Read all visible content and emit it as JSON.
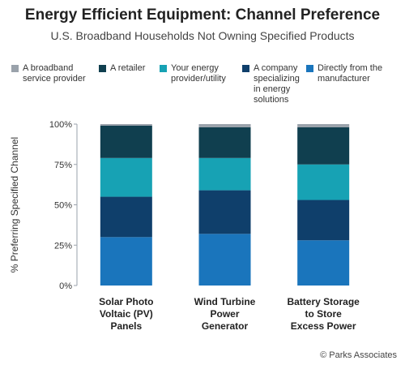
{
  "chart_data": {
    "type": "bar",
    "stacked": true,
    "title": "Energy Efficient Equipment: Channel Preference",
    "subtitle": "U.S. Broadband Households Not Owning Specified Products",
    "ylabel": "% Preferring Specified Channel",
    "ylim": [
      0,
      100
    ],
    "yticks": [
      "0%",
      "25%",
      "50%",
      "75%",
      "100%"
    ],
    "categories": [
      "Solar Photo Voltaic (PV) Panels",
      "Wind Turbine Power Generator",
      "Battery Storage to Store Excess Power"
    ],
    "series": [
      {
        "name": "Directly from the manufacturer",
        "color": "#1a75bc",
        "values": [
          30,
          32,
          28
        ]
      },
      {
        "name": "A company specializing in energy solutions",
        "color": "#0f3f6b",
        "values": [
          25,
          27,
          25
        ]
      },
      {
        "name": "Your energy provider/utility",
        "color": "#17a2b4",
        "values": [
          24,
          20,
          22
        ]
      },
      {
        "name": "A retailer",
        "color": "#103f4f",
        "values": [
          20,
          19,
          23
        ]
      },
      {
        "name": "A broadband service provider",
        "color": "#9aa2ab",
        "values": [
          1,
          2,
          2
        ]
      }
    ],
    "legend_order": [
      4,
      3,
      2,
      1,
      0
    ],
    "legend_position": "top",
    "grid": false
  },
  "legend_labels": [
    "A broadband\nservice provider",
    "A retailer",
    "Your energy\nprovider/utility",
    "A company\nspecializing\nin energy\nsolutions",
    "Directly from the\nmanufacturer"
  ],
  "category_labels": [
    [
      "Solar Photo",
      "Voltaic (PV)",
      "Panels"
    ],
    [
      "Wind Turbine",
      "Power",
      "Generator"
    ],
    [
      "Battery Storage",
      "to Store",
      "Excess Power"
    ]
  ],
  "credit": "© Parks Associates"
}
